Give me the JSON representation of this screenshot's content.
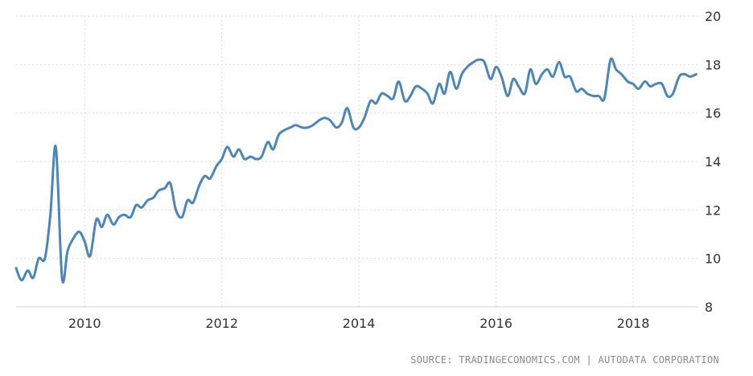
{
  "chart_data": {
    "type": "line",
    "title": "",
    "xlabel": "",
    "ylabel": "",
    "xlim": [
      2009.0,
      2018.95
    ],
    "ylim": [
      8,
      20
    ],
    "x_ticks": [
      2010,
      2012,
      2014,
      2016,
      2018
    ],
    "x_tick_labels": [
      "2010",
      "2012",
      "2014",
      "2016",
      "2018"
    ],
    "y_ticks": [
      8,
      10,
      12,
      14,
      16,
      18,
      20
    ],
    "y_tick_labels": [
      "8",
      "10",
      "12",
      "14",
      "16",
      "18",
      "20"
    ],
    "y_axis_side": "right",
    "grid": true,
    "legend": "none",
    "line_color": "#4a86bb",
    "series": [
      {
        "x": [
          2009.0,
          2009.08,
          2009.17,
          2009.25,
          2009.33,
          2009.42,
          2009.5,
          2009.58,
          2009.67,
          2009.75,
          2009.83,
          2009.92,
          2010.0,
          2010.08,
          2010.17,
          2010.25,
          2010.33,
          2010.42,
          2010.5,
          2010.58,
          2010.67,
          2010.75,
          2010.83,
          2010.92,
          2011.0,
          2011.08,
          2011.17,
          2011.25,
          2011.33,
          2011.42,
          2011.5,
          2011.58,
          2011.67,
          2011.75,
          2011.83,
          2011.92,
          2012.0,
          2012.08,
          2012.17,
          2012.25,
          2012.33,
          2012.42,
          2012.5,
          2012.58,
          2012.67,
          2012.75,
          2012.83,
          2012.92,
          2013.0,
          2013.08,
          2013.17,
          2013.25,
          2013.33,
          2013.42,
          2013.5,
          2013.58,
          2013.67,
          2013.75,
          2013.83,
          2013.92,
          2014.0,
          2014.08,
          2014.17,
          2014.25,
          2014.33,
          2014.42,
          2014.5,
          2014.58,
          2014.67,
          2014.75,
          2014.83,
          2014.92,
          2015.0,
          2015.08,
          2015.17,
          2015.25,
          2015.33,
          2015.42,
          2015.5,
          2015.58,
          2015.67,
          2015.75,
          2015.83,
          2015.92,
          2016.0,
          2016.08,
          2016.17,
          2016.25,
          2016.33,
          2016.42,
          2016.5,
          2016.58,
          2016.67,
          2016.75,
          2016.83,
          2016.92,
          2017.0,
          2017.08,
          2017.17,
          2017.25,
          2017.33,
          2017.42,
          2017.5,
          2017.58,
          2017.67,
          2017.75,
          2017.83,
          2017.92,
          2018.0,
          2018.08,
          2018.17,
          2018.25,
          2018.33,
          2018.42,
          2018.5,
          2018.58,
          2018.67,
          2018.75,
          2018.83,
          2018.92
        ],
        "y": [
          9.6,
          9.1,
          9.5,
          9.2,
          10.0,
          10.0,
          11.8,
          14.6,
          9.2,
          10.3,
          10.8,
          11.1,
          10.7,
          10.1,
          11.6,
          11.3,
          11.8,
          11.4,
          11.7,
          11.8,
          11.7,
          12.2,
          12.1,
          12.4,
          12.5,
          12.8,
          12.9,
          13.1,
          12.0,
          11.7,
          12.4,
          12.3,
          13.0,
          13.4,
          13.3,
          13.8,
          14.1,
          14.6,
          14.2,
          14.5,
          14.1,
          14.2,
          14.1,
          14.2,
          14.8,
          14.5,
          15.1,
          15.3,
          15.4,
          15.5,
          15.4,
          15.4,
          15.5,
          15.7,
          15.8,
          15.7,
          15.4,
          15.6,
          16.2,
          15.4,
          15.4,
          15.8,
          16.5,
          16.4,
          16.8,
          16.7,
          16.6,
          17.3,
          16.5,
          16.7,
          17.1,
          17.0,
          16.8,
          16.4,
          17.2,
          16.8,
          17.7,
          17.0,
          17.6,
          17.9,
          18.1,
          18.2,
          18.1,
          17.4,
          17.9,
          17.5,
          16.7,
          17.4,
          17.1,
          16.8,
          17.8,
          17.2,
          17.6,
          17.8,
          17.5,
          18.1,
          17.5,
          17.5,
          16.9,
          17.0,
          16.8,
          16.7,
          16.7,
          16.6,
          18.2,
          17.8,
          17.6,
          17.3,
          17.2,
          17.0,
          17.3,
          17.1,
          17.2,
          17.2,
          16.7,
          16.8,
          17.5,
          17.6,
          17.5,
          17.6
        ]
      }
    ]
  },
  "source_text": "SOURCE: TRADINGECONOMICS.COM | AUTODATA CORPORATION"
}
